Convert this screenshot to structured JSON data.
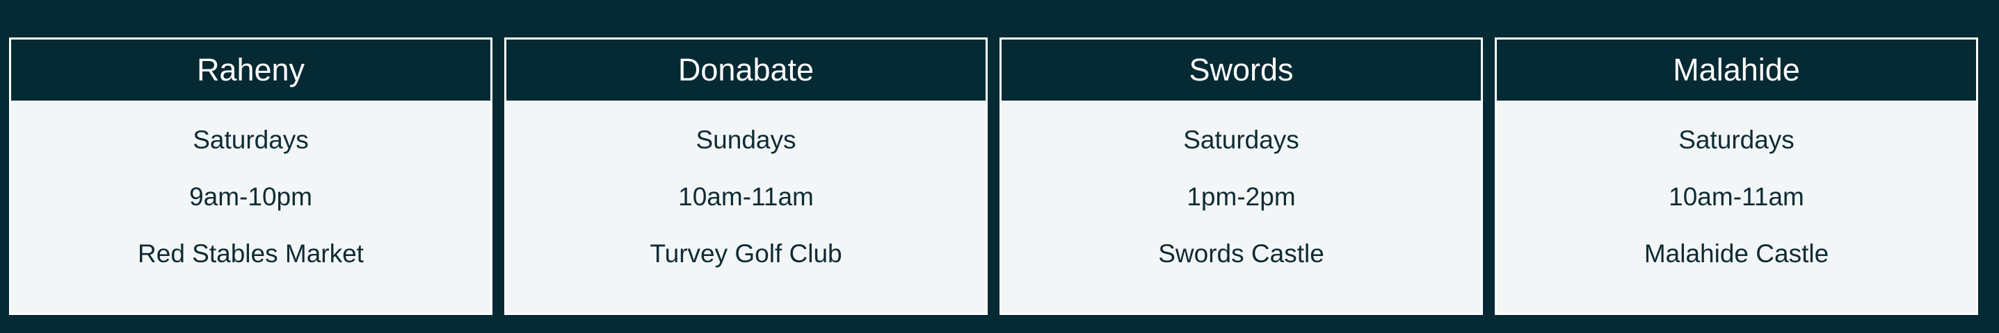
{
  "markets": [
    {
      "name": "Raheny",
      "day": "Saturdays",
      "time": "9am-10pm",
      "venue": "Red Stables Market"
    },
    {
      "name": "Donabate",
      "day": "Sundays",
      "time": "10am-11am",
      "venue": "Turvey Golf Club"
    },
    {
      "name": "Swords",
      "day": "Saturdays",
      "time": "1pm-2pm",
      "venue": "Swords Castle"
    },
    {
      "name": "Malahide",
      "day": "Saturdays",
      "time": "10am-11am",
      "venue": "Malahide Castle"
    }
  ],
  "colors": {
    "page_background": "#062a33",
    "header_background": "#062a33",
    "card_background": "#f3f6f7",
    "card_border": "#ffffff",
    "header_text": "#ffffff",
    "body_text": "#0f2b33"
  }
}
